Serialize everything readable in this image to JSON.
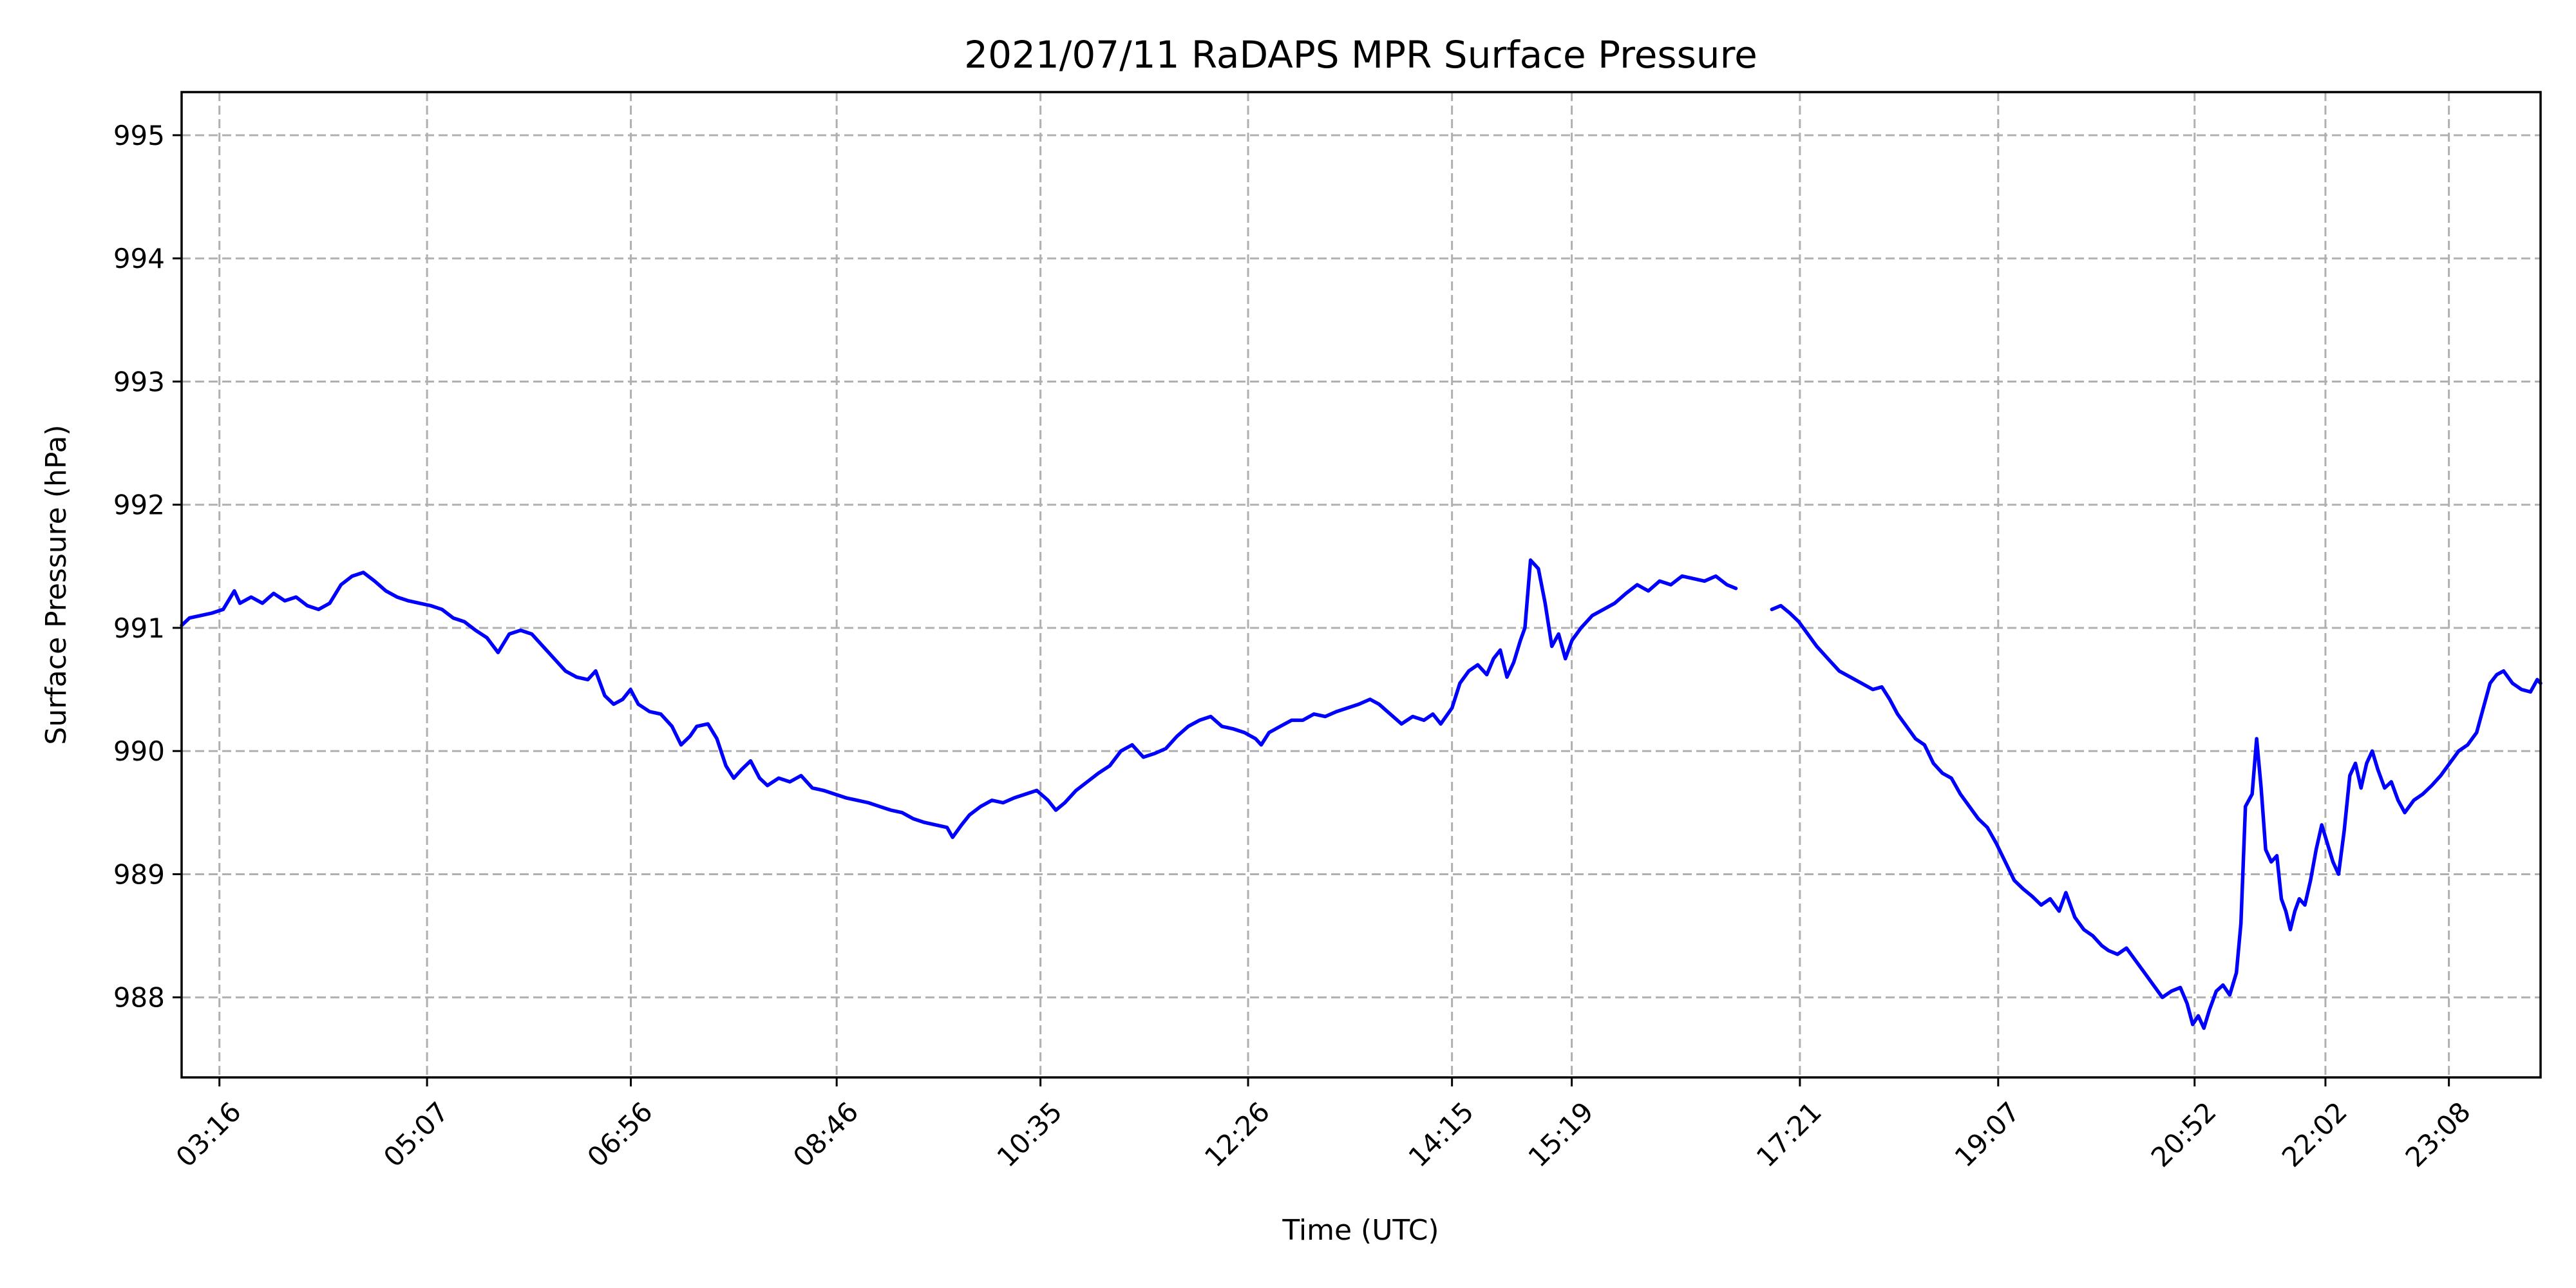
{
  "chart_data": {
    "type": "line",
    "title": "2021/07/11 RaDAPS MPR Surface Pressure",
    "xlabel": "Time (UTC)",
    "ylabel": "Surface Pressure (hPa)",
    "x_unit": "hours UTC",
    "xlim": [
      2.93,
      23.95
    ],
    "ylim": [
      987.35,
      995.35
    ],
    "grid": true,
    "line_color": "#0000ff",
    "x_ticks": [
      {
        "label": "03:16",
        "value": 3.267
      },
      {
        "label": "05:07",
        "value": 5.117
      },
      {
        "label": "06:56",
        "value": 6.933
      },
      {
        "label": "08:46",
        "value": 8.767
      },
      {
        "label": "10:35",
        "value": 10.583
      },
      {
        "label": "12:26",
        "value": 12.433
      },
      {
        "label": "14:15",
        "value": 14.25
      },
      {
        "label": "15:19",
        "value": 15.317
      },
      {
        "label": "17:21",
        "value": 17.35
      },
      {
        "label": "19:07",
        "value": 19.117
      },
      {
        "label": "20:52",
        "value": 20.867
      },
      {
        "label": "22:02",
        "value": 22.033
      },
      {
        "label": "23:08",
        "value": 23.133
      }
    ],
    "y_ticks": [
      {
        "label": "988",
        "value": 988
      },
      {
        "label": "989",
        "value": 989
      },
      {
        "label": "990",
        "value": 990
      },
      {
        "label": "991",
        "value": 991
      },
      {
        "label": "992",
        "value": 992
      },
      {
        "label": "993",
        "value": 993
      },
      {
        "label": "994",
        "value": 994
      },
      {
        "label": "995",
        "value": 995
      }
    ],
    "series": [
      {
        "color": "#0000ff",
        "segments": [
          [
            [
              2.93,
              991.02
            ],
            [
              3.0,
              991.08
            ],
            [
              3.1,
              991.1
            ],
            [
              3.2,
              991.12
            ],
            [
              3.3,
              991.15
            ],
            [
              3.4,
              991.3
            ],
            [
              3.45,
              991.2
            ],
            [
              3.55,
              991.25
            ],
            [
              3.65,
              991.2
            ],
            [
              3.75,
              991.28
            ],
            [
              3.85,
              991.22
            ],
            [
              3.95,
              991.25
            ],
            [
              4.05,
              991.18
            ],
            [
              4.15,
              991.15
            ],
            [
              4.25,
              991.2
            ],
            [
              4.35,
              991.35
            ],
            [
              4.45,
              991.42
            ],
            [
              4.55,
              991.45
            ],
            [
              4.65,
              991.38
            ],
            [
              4.75,
              991.3
            ],
            [
              4.85,
              991.25
            ],
            [
              4.95,
              991.22
            ],
            [
              5.05,
              991.2
            ],
            [
              5.15,
              991.18
            ],
            [
              5.25,
              991.15
            ],
            [
              5.35,
              991.08
            ],
            [
              5.45,
              991.05
            ],
            [
              5.55,
              990.98
            ],
            [
              5.65,
              990.92
            ],
            [
              5.75,
              990.8
            ],
            [
              5.85,
              990.95
            ],
            [
              5.95,
              990.98
            ],
            [
              6.05,
              990.95
            ],
            [
              6.15,
              990.85
            ],
            [
              6.25,
              990.75
            ],
            [
              6.35,
              990.65
            ],
            [
              6.45,
              990.6
            ],
            [
              6.55,
              990.58
            ],
            [
              6.62,
              990.65
            ],
            [
              6.7,
              990.45
            ],
            [
              6.78,
              990.38
            ],
            [
              6.86,
              990.42
            ],
            [
              6.93,
              990.5
            ],
            [
              7.0,
              990.38
            ],
            [
              7.1,
              990.32
            ],
            [
              7.2,
              990.3
            ],
            [
              7.3,
              990.2
            ],
            [
              7.38,
              990.05
            ],
            [
              7.46,
              990.12
            ],
            [
              7.52,
              990.2
            ],
            [
              7.62,
              990.22
            ],
            [
              7.7,
              990.1
            ],
            [
              7.78,
              989.88
            ],
            [
              7.85,
              989.78
            ],
            [
              7.92,
              989.85
            ],
            [
              8.0,
              989.92
            ],
            [
              8.08,
              989.78
            ],
            [
              8.15,
              989.72
            ],
            [
              8.25,
              989.78
            ],
            [
              8.35,
              989.75
            ],
            [
              8.45,
              989.8
            ],
            [
              8.55,
              989.7
            ],
            [
              8.65,
              989.68
            ],
            [
              8.75,
              989.65
            ],
            [
              8.85,
              989.62
            ],
            [
              8.95,
              989.6
            ],
            [
              9.05,
              989.58
            ],
            [
              9.15,
              989.55
            ],
            [
              9.25,
              989.52
            ],
            [
              9.35,
              989.5
            ],
            [
              9.45,
              989.45
            ],
            [
              9.55,
              989.42
            ],
            [
              9.65,
              989.4
            ],
            [
              9.75,
              989.38
            ],
            [
              9.8,
              989.3
            ],
            [
              9.88,
              989.4
            ],
            [
              9.95,
              989.48
            ],
            [
              10.05,
              989.55
            ],
            [
              10.15,
              989.6
            ],
            [
              10.25,
              989.58
            ],
            [
              10.35,
              989.62
            ],
            [
              10.45,
              989.65
            ],
            [
              10.55,
              989.68
            ],
            [
              10.65,
              989.6
            ],
            [
              10.72,
              989.52
            ],
            [
              10.8,
              989.58
            ],
            [
              10.9,
              989.68
            ],
            [
              11.0,
              989.75
            ],
            [
              11.1,
              989.82
            ],
            [
              11.2,
              989.88
            ],
            [
              11.3,
              990.0
            ],
            [
              11.4,
              990.05
            ],
            [
              11.5,
              989.95
            ],
            [
              11.6,
              989.98
            ],
            [
              11.7,
              990.02
            ],
            [
              11.8,
              990.12
            ],
            [
              11.9,
              990.2
            ],
            [
              12.0,
              990.25
            ],
            [
              12.1,
              990.28
            ],
            [
              12.2,
              990.2
            ],
            [
              12.3,
              990.18
            ],
            [
              12.4,
              990.15
            ],
            [
              12.5,
              990.1
            ],
            [
              12.55,
              990.05
            ],
            [
              12.62,
              990.15
            ],
            [
              12.72,
              990.2
            ],
            [
              12.82,
              990.25
            ],
            [
              12.92,
              990.25
            ],
            [
              13.02,
              990.3
            ],
            [
              13.12,
              990.28
            ],
            [
              13.22,
              990.32
            ],
            [
              13.32,
              990.35
            ],
            [
              13.42,
              990.38
            ],
            [
              13.52,
              990.42
            ],
            [
              13.6,
              990.38
            ],
            [
              13.7,
              990.3
            ],
            [
              13.8,
              990.22
            ],
            [
              13.9,
              990.28
            ],
            [
              14.0,
              990.25
            ],
            [
              14.08,
              990.3
            ],
            [
              14.15,
              990.22
            ],
            [
              14.25,
              990.35
            ],
            [
              14.32,
              990.55
            ],
            [
              14.4,
              990.65
            ],
            [
              14.48,
              990.7
            ],
            [
              14.56,
              990.62
            ],
            [
              14.62,
              990.75
            ],
            [
              14.68,
              990.82
            ],
            [
              14.74,
              990.6
            ],
            [
              14.8,
              990.72
            ],
            [
              14.86,
              990.9
            ],
            [
              14.9,
              991.0
            ],
            [
              14.95,
              991.55
            ],
            [
              15.02,
              991.48
            ],
            [
              15.08,
              991.2
            ],
            [
              15.14,
              990.85
            ],
            [
              15.2,
              990.95
            ],
            [
              15.26,
              990.75
            ],
            [
              15.32,
              990.9
            ],
            [
              15.4,
              991.0
            ],
            [
              15.5,
              991.1
            ],
            [
              15.6,
              991.15
            ],
            [
              15.7,
              991.2
            ],
            [
              15.8,
              991.28
            ],
            [
              15.9,
              991.35
            ],
            [
              16.0,
              991.3
            ],
            [
              16.1,
              991.38
            ],
            [
              16.2,
              991.35
            ],
            [
              16.3,
              991.42
            ],
            [
              16.4,
              991.4
            ],
            [
              16.5,
              991.38
            ],
            [
              16.6,
              991.42
            ],
            [
              16.7,
              991.35
            ],
            [
              16.78,
              991.32
            ]
          ],
          [
            [
              17.1,
              991.15
            ],
            [
              17.18,
              991.18
            ],
            [
              17.26,
              991.12
            ],
            [
              17.34,
              991.05
            ],
            [
              17.42,
              990.95
            ],
            [
              17.5,
              990.85
            ],
            [
              17.6,
              990.75
            ],
            [
              17.7,
              990.65
            ],
            [
              17.8,
              990.6
            ],
            [
              17.9,
              990.55
            ],
            [
              18.0,
              990.5
            ],
            [
              18.08,
              990.52
            ],
            [
              18.15,
              990.42
            ],
            [
              18.22,
              990.3
            ],
            [
              18.3,
              990.2
            ],
            [
              18.38,
              990.1
            ],
            [
              18.46,
              990.05
            ],
            [
              18.54,
              989.9
            ],
            [
              18.62,
              989.82
            ],
            [
              18.7,
              989.78
            ],
            [
              18.78,
              989.65
            ],
            [
              18.86,
              989.55
            ],
            [
              18.94,
              989.45
            ],
            [
              19.02,
              989.38
            ],
            [
              19.1,
              989.25
            ],
            [
              19.18,
              989.1
            ],
            [
              19.26,
              988.95
            ],
            [
              19.34,
              988.88
            ],
            [
              19.42,
              988.82
            ],
            [
              19.5,
              988.75
            ],
            [
              19.58,
              988.8
            ],
            [
              19.66,
              988.7
            ],
            [
              19.72,
              988.85
            ],
            [
              19.8,
              988.65
            ],
            [
              19.88,
              988.55
            ],
            [
              19.96,
              988.5
            ],
            [
              20.04,
              988.42
            ],
            [
              20.1,
              988.38
            ],
            [
              20.18,
              988.35
            ],
            [
              20.26,
              988.4
            ],
            [
              20.34,
              988.3
            ],
            [
              20.42,
              988.2
            ],
            [
              20.5,
              988.1
            ],
            [
              20.58,
              988.0
            ],
            [
              20.66,
              988.05
            ],
            [
              20.74,
              988.08
            ],
            [
              20.8,
              987.95
            ],
            [
              20.85,
              987.78
            ],
            [
              20.9,
              987.85
            ],
            [
              20.95,
              987.75
            ],
            [
              21.0,
              987.9
            ],
            [
              21.06,
              988.05
            ],
            [
              21.12,
              988.1
            ],
            [
              21.18,
              988.02
            ],
            [
              21.24,
              988.2
            ],
            [
              21.28,
              988.6
            ],
            [
              21.32,
              989.55
            ],
            [
              21.38,
              989.65
            ],
            [
              21.42,
              990.1
            ],
            [
              21.46,
              989.7
            ],
            [
              21.5,
              989.2
            ],
            [
              21.55,
              989.1
            ],
            [
              21.6,
              989.15
            ],
            [
              21.64,
              988.8
            ],
            [
              21.68,
              988.7
            ],
            [
              21.72,
              988.55
            ],
            [
              21.76,
              988.7
            ],
            [
              21.8,
              988.8
            ],
            [
              21.85,
              988.75
            ],
            [
              21.9,
              988.95
            ],
            [
              21.95,
              989.2
            ],
            [
              22.0,
              989.4
            ],
            [
              22.05,
              989.25
            ],
            [
              22.1,
              989.1
            ],
            [
              22.15,
              989.0
            ],
            [
              22.2,
              989.35
            ],
            [
              22.25,
              989.8
            ],
            [
              22.3,
              989.9
            ],
            [
              22.35,
              989.7
            ],
            [
              22.4,
              989.9
            ],
            [
              22.45,
              990.0
            ],
            [
              22.5,
              989.85
            ],
            [
              22.56,
              989.7
            ],
            [
              22.62,
              989.75
            ],
            [
              22.68,
              989.6
            ],
            [
              22.74,
              989.5
            ],
            [
              22.82,
              989.6
            ],
            [
              22.9,
              989.65
            ],
            [
              22.98,
              989.72
            ],
            [
              23.06,
              989.8
            ],
            [
              23.14,
              989.9
            ],
            [
              23.22,
              990.0
            ],
            [
              23.3,
              990.05
            ],
            [
              23.38,
              990.15
            ],
            [
              23.44,
              990.35
            ],
            [
              23.5,
              990.55
            ],
            [
              23.56,
              990.62
            ],
            [
              23.62,
              990.65
            ],
            [
              23.7,
              990.55
            ],
            [
              23.78,
              990.5
            ],
            [
              23.86,
              990.48
            ],
            [
              23.92,
              990.58
            ],
            [
              23.95,
              990.55
            ]
          ]
        ]
      }
    ]
  }
}
